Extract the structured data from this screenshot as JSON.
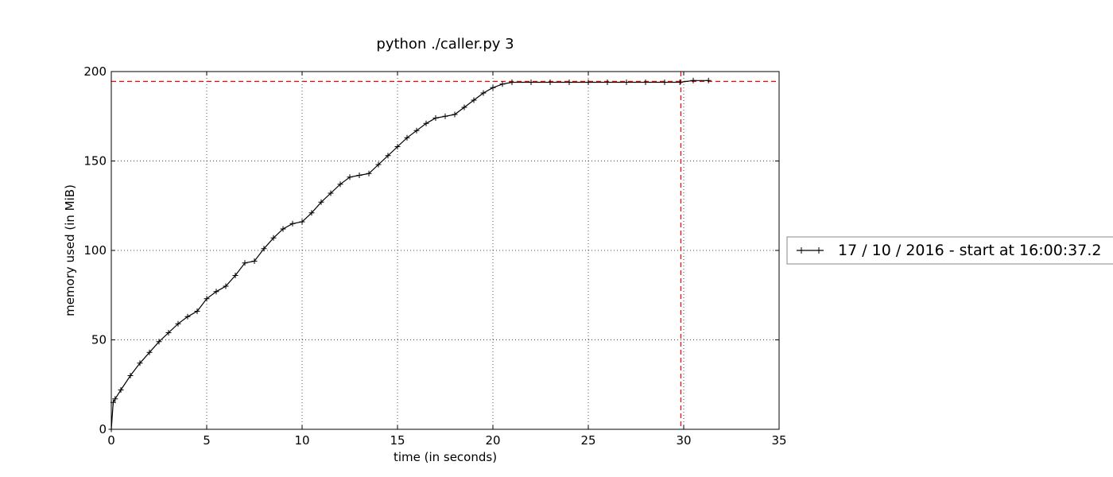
{
  "chart_data": {
    "type": "line",
    "title": "python ./caller.py 3",
    "xlabel": "time (in seconds)",
    "ylabel": "memory used (in MiB)",
    "xlim": [
      0,
      35
    ],
    "ylim": [
      0,
      200
    ],
    "xticks": [
      0,
      5,
      10,
      15,
      20,
      25,
      30,
      35
    ],
    "yticks": [
      0,
      50,
      100,
      150,
      200
    ],
    "grid": true,
    "grid_style": "dotted",
    "legend_position": "right, outside plot",
    "series": [
      {
        "name": "17 / 10 / 2016 - start at 16:00:37.2",
        "color": "#000000",
        "marker": "+",
        "x": [
          0,
          0.1,
          0.2,
          0.5,
          1,
          1.5,
          2,
          2.5,
          3,
          3.5,
          4,
          4.5,
          5,
          5.5,
          6,
          6.5,
          7,
          7.5,
          8,
          8.5,
          9,
          9.5,
          10,
          10.5,
          11,
          11.5,
          12,
          12.5,
          13,
          13.5,
          14,
          14.5,
          15,
          15.5,
          16,
          16.5,
          17,
          17.5,
          18,
          18.5,
          19,
          19.5,
          20,
          20.5,
          21,
          22,
          23,
          24,
          25,
          26,
          27,
          28,
          29,
          29.8,
          30.5,
          31.3
        ],
        "y": [
          0,
          15,
          17,
          22,
          30,
          37,
          43,
          49,
          54,
          59,
          63,
          66,
          73,
          77,
          80,
          86,
          93,
          94,
          101,
          107,
          112,
          115,
          116,
          121,
          127,
          132,
          137,
          141,
          142,
          143,
          148,
          153,
          158,
          163,
          167,
          171,
          174,
          175,
          176,
          180,
          184,
          188,
          191,
          193,
          194,
          194,
          194,
          194,
          194,
          194,
          194,
          194,
          194,
          194,
          195,
          195
        ]
      }
    ],
    "reference_lines": [
      {
        "orientation": "horizontal",
        "value": 194.5,
        "color": "#ff0000",
        "style": "dashed"
      },
      {
        "orientation": "vertical",
        "value": 29.85,
        "color": "#ff0000",
        "style": "dashed"
      }
    ]
  }
}
